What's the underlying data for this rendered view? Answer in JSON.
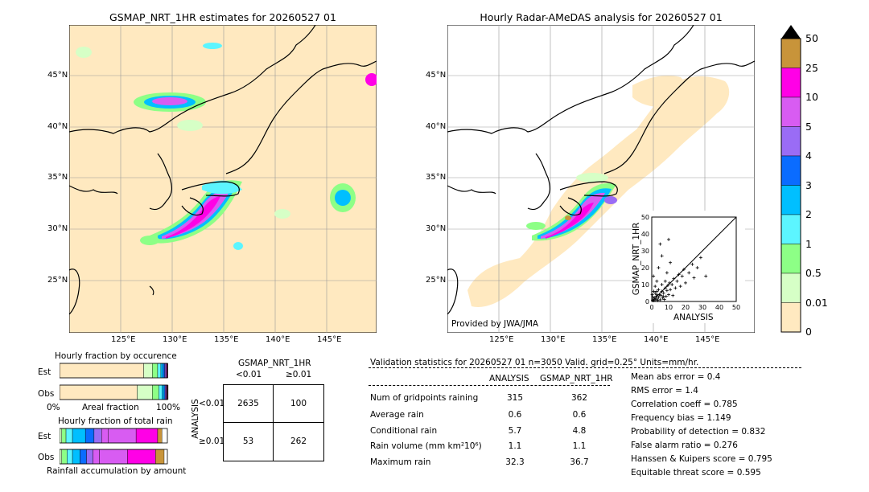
{
  "left_map": {
    "title": "GSMAP_NRT_1HR estimates for 20260527 01",
    "lat_labels": [
      "45°N",
      "40°N",
      "35°N",
      "30°N",
      "25°N"
    ],
    "lon_labels": [
      "125°E",
      "130°E",
      "135°E",
      "140°E",
      "145°E"
    ]
  },
  "right_map": {
    "title": "Hourly Radar-AMeDAS analysis for 20260527 01",
    "lat_labels": [
      "45°N",
      "40°N",
      "35°N",
      "30°N",
      "25°N"
    ],
    "lon_labels": [
      "125°E",
      "130°E",
      "135°E",
      "140°E",
      "145°E"
    ],
    "credit": "Provided by JWA/JMA"
  },
  "colorbar": {
    "labels": [
      "50",
      "25",
      "10",
      "5",
      "4",
      "3",
      "2",
      "1",
      "0.5",
      "0.01",
      "0"
    ],
    "colors": [
      "#c8943a",
      "#ff00e6",
      "#d85cf2",
      "#9a6cf5",
      "#0a6cff",
      "#00bfff",
      "#5cf5ff",
      "#8dff86",
      "#d6ffc6",
      "#ffe9c0"
    ]
  },
  "scatter": {
    "chart_data": {
      "type": "scatter",
      "xlabel": "ANALYSIS",
      "ylabel": "GSMAP_NRT_1HR",
      "xlim": [
        0,
        50
      ],
      "ylim": [
        0,
        50
      ],
      "ticks": [
        "0",
        "10",
        "20",
        "30",
        "40",
        "50"
      ],
      "points": [
        [
          0.5,
          0.8
        ],
        [
          1,
          0.5
        ],
        [
          1.5,
          2
        ],
        [
          2,
          1
        ],
        [
          2.5,
          3
        ],
        [
          3,
          1.5
        ],
        [
          3.5,
          0.6
        ],
        [
          4,
          2.5
        ],
        [
          4.5,
          4
        ],
        [
          5,
          1
        ],
        [
          5.5,
          3.5
        ],
        [
          6,
          6
        ],
        [
          6.5,
          2
        ],
        [
          7,
          5
        ],
        [
          7.5,
          1.2
        ],
        [
          8,
          8
        ],
        [
          8.5,
          3
        ],
        [
          9,
          6.5
        ],
        [
          9.5,
          9.5
        ],
        [
          10,
          4
        ],
        [
          10.5,
          11
        ],
        [
          11,
          7
        ],
        [
          12,
          10
        ],
        [
          12.5,
          3.5
        ],
        [
          13,
          13.5
        ],
        [
          14,
          8
        ],
        [
          15,
          12
        ],
        [
          16,
          16
        ],
        [
          17,
          9
        ],
        [
          18,
          15
        ],
        [
          19,
          19
        ],
        [
          20,
          11
        ],
        [
          22,
          17
        ],
        [
          24,
          22
        ],
        [
          25,
          14
        ],
        [
          27,
          20
        ],
        [
          29,
          26
        ],
        [
          32,
          15
        ],
        [
          2,
          9
        ],
        [
          3,
          12
        ],
        [
          1,
          15
        ],
        [
          4,
          20
        ],
        [
          6,
          27
        ],
        [
          5,
          34
        ],
        [
          9,
          17
        ],
        [
          11,
          23
        ],
        [
          10,
          36.7
        ],
        [
          0.3,
          4
        ],
        [
          1.2,
          6
        ],
        [
          0.8,
          2.5
        ],
        [
          3,
          4
        ],
        [
          2,
          5
        ],
        [
          4,
          7
        ],
        [
          6,
          10
        ],
        [
          8,
          12
        ],
        [
          7,
          3
        ],
        [
          3,
          6
        ]
      ]
    }
  },
  "frac_occurrence": {
    "title": "Hourly fraction by occurence",
    "row_labels": [
      "Est",
      "Obs"
    ],
    "axis_left": "0%",
    "axis_mid": "Areal fraction",
    "axis_right": "100%",
    "chart_data": {
      "type": "bar",
      "orientation": "horizontal-stacked",
      "categories": [
        "Est",
        "Obs"
      ],
      "series": [
        {
          "values": [
            0.78,
            0.72
          ]
        },
        {
          "values": [
            0.08,
            0.14
          ]
        },
        {
          "values": [
            0.05,
            0.06
          ]
        },
        {
          "values": [
            0.03,
            0.03
          ]
        },
        {
          "values": [
            0.02,
            0.02
          ]
        },
        {
          "values": [
            0.015,
            0.01
          ]
        },
        {
          "values": [
            0.01,
            0.008
          ]
        },
        {
          "values": [
            0.008,
            0.007
          ]
        },
        {
          "values": [
            0.007,
            0.008
          ]
        },
        {
          "values": [
            0.005,
            0.004
          ]
        }
      ],
      "colors": [
        "#ffe9c0",
        "#d6ffc6",
        "#8dff86",
        "#5cf5ff",
        "#00bfff",
        "#0a6cff",
        "#9a6cf5",
        "#d85cf2",
        "#ff00e6",
        "#c8943a"
      ]
    }
  },
  "frac_total": {
    "title": "Hourly fraction of total rain",
    "row_labels": [
      "Est",
      "Obs"
    ],
    "footer": "Rainfall accumulation by amount",
    "chart_data": {
      "type": "bar",
      "orientation": "horizontal-stacked",
      "categories": [
        "Est",
        "Obs"
      ],
      "series": [
        {
          "values": [
            0.02,
            0.02
          ]
        },
        {
          "values": [
            0.04,
            0.05
          ]
        },
        {
          "values": [
            0.06,
            0.05
          ]
        },
        {
          "values": [
            0.12,
            0.07
          ]
        },
        {
          "values": [
            0.08,
            0.06
          ]
        },
        {
          "values": [
            0.07,
            0.06
          ]
        },
        {
          "values": [
            0.06,
            0.06
          ]
        },
        {
          "values": [
            0.26,
            0.26
          ]
        },
        {
          "values": [
            0.2,
            0.26
          ]
        },
        {
          "values": [
            0.04,
            0.08
          ]
        }
      ],
      "colors": [
        "#d6ffc6",
        "#8dff86",
        "#5cf5ff",
        "#00bfff",
        "#0a6cff",
        "#9a6cf5",
        "#d85cf2",
        "#d85cf2",
        "#ff00e6",
        "#c8943a"
      ]
    }
  },
  "contingency": {
    "title": "GSMAP_NRT_1HR",
    "col_labels": [
      "<0.01",
      "≥0.01"
    ],
    "row_title": "ANALYSIS",
    "row_labels": [
      "<0.01",
      "≥0.01"
    ],
    "cells": [
      [
        "2635",
        "100"
      ],
      [
        "53",
        "262"
      ]
    ]
  },
  "validation": {
    "header": "Validation statistics for 20260527 01  n=3050 Valid. grid=0.25° Units=mm/hr.",
    "col_analysis": "ANALYSIS",
    "col_gsmap": "GSMAP_NRT_1HR",
    "rows": [
      {
        "label": "Num of gridpoints raining",
        "analysis": "315",
        "gsmap": "362"
      },
      {
        "label": "Average rain",
        "analysis": "0.6",
        "gsmap": "0.6"
      },
      {
        "label": "Conditional rain",
        "analysis": "5.7",
        "gsmap": "4.8"
      },
      {
        "label": "Rain volume (mm km²10⁶)",
        "analysis": "1.1",
        "gsmap": "1.1"
      },
      {
        "label": "Maximum rain",
        "analysis": "32.3",
        "gsmap": "36.7"
      }
    ],
    "scores": [
      "Mean abs error =    0.4",
      "RMS error =    1.4",
      "Correlation coeff =  0.785",
      "Frequency bias =  1.149",
      "Probability of detection =  0.832",
      "False alarm ratio =  0.276",
      "Hanssen & Kuipers score =  0.795",
      "Equitable threat score =  0.595"
    ]
  }
}
